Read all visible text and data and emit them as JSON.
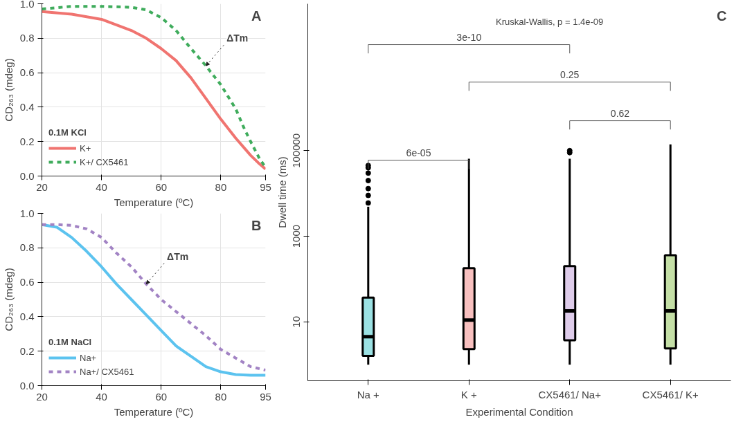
{
  "chart_data": [
    {
      "type": "line",
      "xlabel": "Temperature (ºC)",
      "ylabel": "CD₂₆₃ (mdeg)",
      "legend_title": "0.1M KCl",
      "x": [
        20,
        30,
        40,
        50,
        55,
        60,
        65,
        70,
        75,
        80,
        85,
        88,
        90,
        93,
        95
      ],
      "series": [
        {
          "name": "K+",
          "color": "#f07470",
          "line_style": "solid",
          "values": [
            0.955,
            0.94,
            0.91,
            0.845,
            0.8,
            0.74,
            0.67,
            0.57,
            0.45,
            0.33,
            0.22,
            0.16,
            0.12,
            0.07,
            0.04
          ]
        },
        {
          "name": "K+/ CX5461",
          "color": "#3fac5c",
          "line_style": "dashed",
          "values": [
            0.97,
            0.985,
            0.985,
            0.98,
            0.965,
            0.92,
            0.845,
            0.74,
            0.64,
            0.53,
            0.39,
            0.27,
            0.2,
            0.1,
            0.05
          ]
        }
      ],
      "xlim": [
        20,
        95
      ],
      "xticks": [
        20,
        40,
        60,
        80,
        95
      ],
      "ylim": [
        0,
        1
      ],
      "yticks": [
        {
          "value": 0,
          "label": "0.0"
        },
        {
          "value": 0.2,
          "label": "0.2"
        },
        {
          "value": 0.4,
          "label": "0.4"
        },
        {
          "value": 0.6,
          "label": "0.6"
        },
        {
          "value": 0.8,
          "label": "0.8"
        },
        {
          "value": 1,
          "label": "1.0"
        }
      ],
      "grid": true,
      "legend": "bottom left",
      "annotations": [
        "A",
        {
          "text": "ΔTm",
          "x": 75,
          "y": 0.64
        }
      ]
    },
    {
      "type": "line",
      "xlabel": "Temperature (ºC)",
      "ylabel": "CD₂₆₃ (mdeg)",
      "legend_title": "0.1M NaCl",
      "x": [
        20,
        25,
        30,
        35,
        40,
        45,
        50,
        55,
        60,
        65,
        70,
        75,
        80,
        85,
        90,
        95
      ],
      "series": [
        {
          "name": "Na+",
          "color": "#5cc3ef",
          "line_style": "solid",
          "values": [
            0.935,
            0.92,
            0.86,
            0.78,
            0.69,
            0.59,
            0.5,
            0.41,
            0.32,
            0.23,
            0.17,
            0.11,
            0.08,
            0.064,
            0.06,
            0.06
          ]
        },
        {
          "name": "Na+/ CX5461",
          "color": "#a283c4",
          "line_style": "dashed",
          "values": [
            0.935,
            0.935,
            0.93,
            0.91,
            0.86,
            0.77,
            0.69,
            0.59,
            0.5,
            0.43,
            0.36,
            0.29,
            0.21,
            0.16,
            0.11,
            0.09
          ]
        }
      ],
      "xlim": [
        20,
        95
      ],
      "xticks": [
        20,
        40,
        60,
        80,
        95
      ],
      "ylim": [
        0,
        1
      ],
      "yticks": [
        {
          "value": 0,
          "label": "0.0"
        },
        {
          "value": 0.2,
          "label": "0.2"
        },
        {
          "value": 0.4,
          "label": "0.4"
        },
        {
          "value": 0.6,
          "label": "0.6"
        },
        {
          "value": 0.8,
          "label": "0.8"
        },
        {
          "value": 1,
          "label": "1.0"
        }
      ],
      "grid": true,
      "legend": "bottom left",
      "annotations": [
        "B",
        {
          "text": "ΔTm",
          "x": 55,
          "y": 0.59
        }
      ]
    },
    {
      "type": "box",
      "xlabel": "Experimental Condition",
      "ylabel": "Dwell time (ms)",
      "categories": [
        "Na +",
        "K +",
        "CX5461/ Na+",
        "CX5461/ K+"
      ],
      "colors": [
        "#22bcc0",
        "#f07470",
        "#b58fd0",
        "#7db73a"
      ],
      "boxes": [
        {
          "low": 1,
          "q1": 1.6,
          "median": 4.5,
          "q3": 37,
          "high": 4900,
          "outliers": [
            6000,
            9000,
            13000,
            20000,
            30000,
            40000,
            45000
          ]
        },
        {
          "low": 1,
          "q1": 2.3,
          "median": 11,
          "q3": 180,
          "high": 65000
        },
        {
          "low": 1,
          "q1": 3.7,
          "median": 18,
          "q3": 200,
          "high": 65000,
          "outliers": [
            90000,
            100000
          ]
        },
        {
          "low": 1,
          "q1": 2.4,
          "median": 18,
          "q3": 360,
          "high": 140000
        }
      ],
      "log": true,
      "ylim": [
        0.42,
        270000000
      ],
      "yticks": [
        10,
        1000,
        100000
      ],
      "grid": false,
      "annotations": [
        "C",
        "Kruskal-Wallis, p = 1.4e-09",
        "3e-10",
        "0.25",
        "0.62",
        "6e-05"
      ]
    }
  ]
}
